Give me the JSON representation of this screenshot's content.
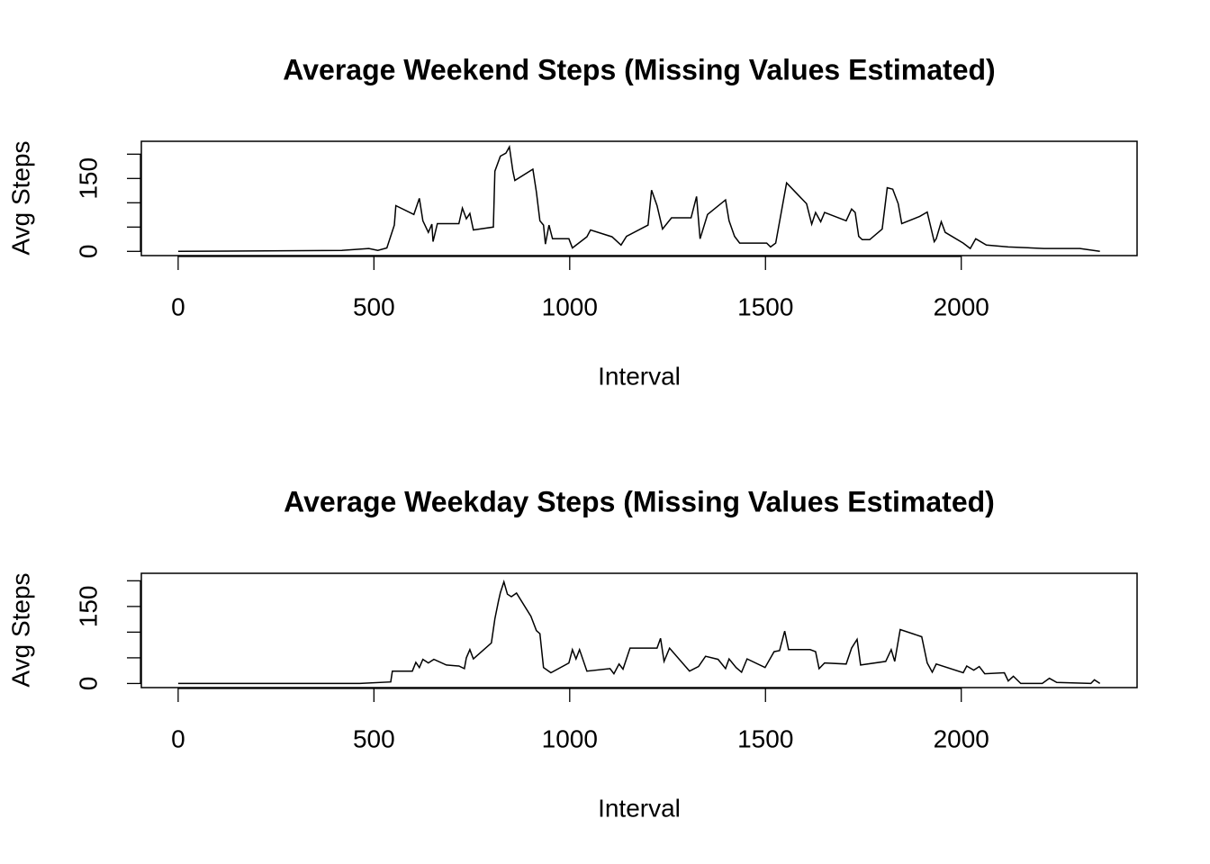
{
  "chart_data": [
    {
      "type": "line",
      "title": "Average Weekend Steps (Missing Values Estimated)",
      "xlabel": "Interval",
      "ylabel": "Avg Steps",
      "x": [
        0,
        418,
        487,
        510,
        533,
        552,
        556,
        602,
        616,
        625,
        639,
        648,
        651,
        662,
        717,
        726,
        736,
        745,
        754,
        805,
        809,
        823,
        837,
        846,
        855,
        860,
        906,
        915,
        924,
        933,
        938,
        947,
        956,
        998,
        1007,
        1044,
        1053,
        1108,
        1131,
        1145,
        1200,
        1209,
        1223,
        1237,
        1260,
        1310,
        1324,
        1333,
        1352,
        1398,
        1407,
        1421,
        1434,
        1453,
        1503,
        1513,
        1526,
        1554,
        1605,
        1618,
        1628,
        1641,
        1651,
        1706,
        1720,
        1729,
        1738,
        1747,
        1766,
        1798,
        1811,
        1825,
        1839,
        1848,
        1894,
        1913,
        1931,
        1936,
        1949,
        1959,
        2005,
        2023,
        2037,
        2064,
        2120,
        2211,
        2303,
        2354
      ],
      "values": [
        0,
        2,
        6,
        2,
        7,
        54,
        94,
        76,
        109,
        63,
        39,
        56,
        20,
        57,
        57,
        89,
        67,
        78,
        44,
        50,
        165,
        196,
        202,
        215,
        165,
        146,
        169,
        122,
        63,
        54,
        15,
        54,
        26,
        26,
        7,
        30,
        44,
        30,
        13,
        31,
        54,
        126,
        94,
        46,
        69,
        69,
        113,
        26,
        76,
        106,
        63,
        31,
        17,
        17,
        17,
        9,
        17,
        141,
        98,
        56,
        80,
        61,
        80,
        63,
        87,
        80,
        31,
        24,
        24,
        46,
        131,
        128,
        98,
        57,
        72,
        81,
        20,
        26,
        61,
        39,
        17,
        6,
        26,
        13,
        9,
        6,
        6,
        0
      ],
      "color": "#000000",
      "xlim": [
        -94,
        2449
      ],
      "ylim": [
        -8.7,
        226.5
      ],
      "xticks": [
        0,
        500,
        1000,
        1500,
        2000
      ],
      "yticks": [
        0,
        150
      ],
      "y_unlabeled_ticks": [
        50,
        100,
        200
      ]
    },
    {
      "type": "line",
      "title": "Average Weekday Steps (Missing Values Estimated)",
      "xlabel": "Interval",
      "ylabel": "Avg Steps",
      "x": [
        0,
        464,
        543,
        547,
        598,
        607,
        616,
        625,
        639,
        653,
        685,
        717,
        731,
        736,
        745,
        754,
        800,
        809,
        818,
        823,
        832,
        841,
        851,
        864,
        901,
        915,
        924,
        933,
        952,
        998,
        1007,
        1016,
        1025,
        1044,
        1103,
        1113,
        1126,
        1136,
        1154,
        1223,
        1232,
        1241,
        1255,
        1306,
        1329,
        1347,
        1379,
        1398,
        1407,
        1425,
        1439,
        1453,
        1499,
        1522,
        1536,
        1549,
        1559,
        1614,
        1628,
        1637,
        1651,
        1706,
        1720,
        1734,
        1743,
        1807,
        1821,
        1830,
        1844,
        1899,
        1913,
        1926,
        1936,
        2005,
        2014,
        2032,
        2046,
        2060,
        2110,
        2120,
        2133,
        2152,
        2207,
        2225,
        2244,
        2331,
        2340,
        2354
      ],
      "values": [
        0,
        0,
        3,
        24,
        24,
        41,
        31,
        47,
        40,
        47,
        36,
        34,
        29,
        50,
        66,
        48,
        79,
        126,
        160,
        177,
        198,
        174,
        169,
        176,
        131,
        103,
        97,
        31,
        21,
        40,
        66,
        48,
        66,
        24,
        29,
        19,
        38,
        28,
        69,
        69,
        88,
        43,
        69,
        24,
        33,
        53,
        47,
        29,
        48,
        31,
        22,
        48,
        31,
        62,
        64,
        102,
        66,
        66,
        62,
        29,
        40,
        38,
        69,
        86,
        36,
        43,
        66,
        43,
        105,
        91,
        40,
        22,
        38,
        21,
        34,
        26,
        33,
        19,
        21,
        5,
        14,
        0,
        0,
        10,
        2,
        0,
        7,
        0
      ],
      "color": "#000000",
      "xlim": [
        -94,
        2449
      ],
      "ylim": [
        -8,
        214.6
      ],
      "xticks": [
        0,
        500,
        1000,
        1500,
        2000
      ],
      "yticks": [
        0,
        150
      ],
      "y_unlabeled_ticks": [
        50,
        100,
        200
      ]
    }
  ]
}
